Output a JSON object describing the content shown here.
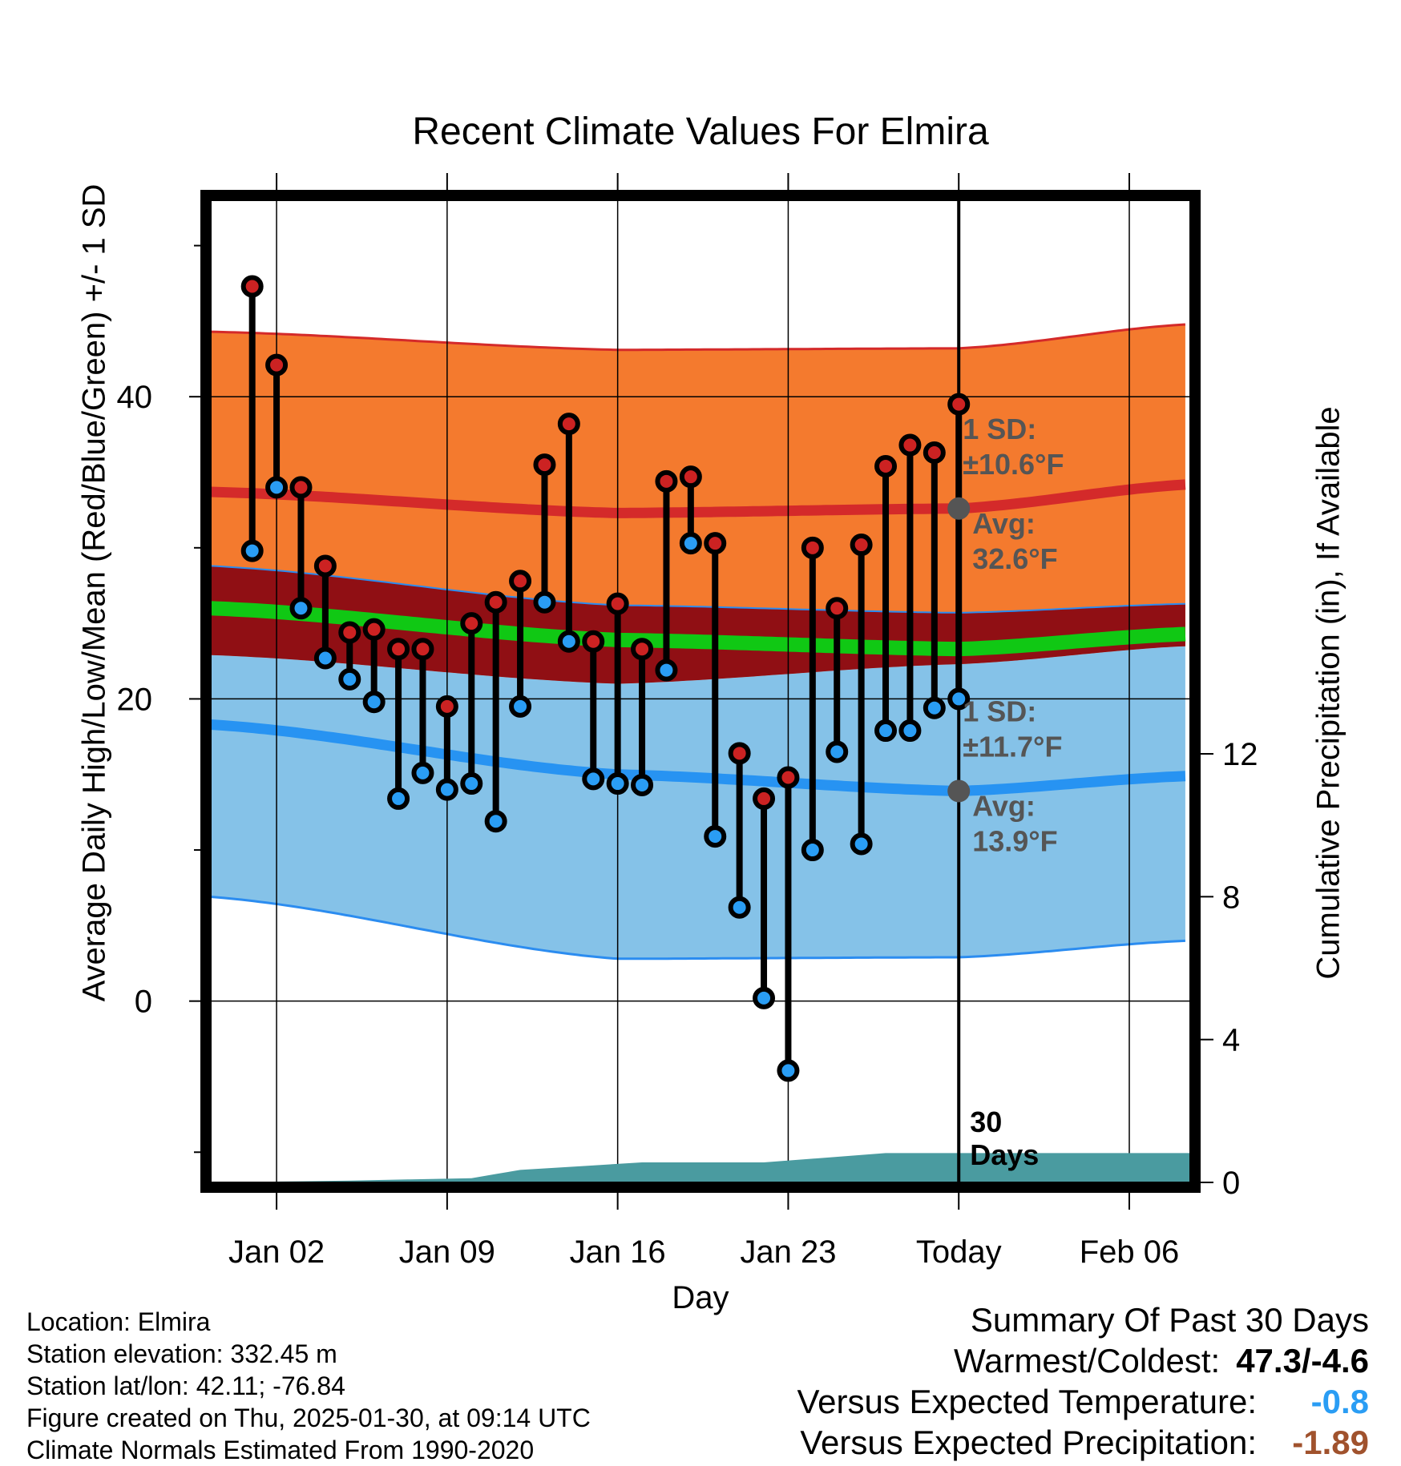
{
  "chart_data": {
    "type": "line",
    "title": "Recent Climate Values For Elmira",
    "xlabel": "Day",
    "ylabel": "Average Daily High/Low/Mean (Red/Blue/Green) +/- 1 SD",
    "y2label": "Cumulative Precipitation (in), If Available",
    "ylim": [
      -12,
      53
    ],
    "y_ticks": [
      0,
      20,
      40
    ],
    "y2lim": [
      0,
      27.5
    ],
    "y2_ticks": [
      0,
      4,
      8,
      12
    ],
    "x_tick_labels": [
      "Jan 02",
      "Jan 09",
      "Jan 16",
      "Jan 23",
      "Today",
      "Feb 06"
    ],
    "x_tick_days": [
      2,
      9,
      16,
      23,
      30,
      37
    ],
    "xlim": [
      -0.7,
      39.5
    ],
    "days": [
      1,
      2,
      3,
      4,
      5,
      6,
      7,
      8,
      9,
      10,
      11,
      12,
      13,
      14,
      15,
      16,
      17,
      18,
      19,
      20,
      21,
      22,
      23,
      24,
      25,
      26,
      27,
      28,
      29,
      30
    ],
    "series": [
      {
        "name": "Daily High",
        "color": "#cc2222",
        "values": [
          47.3,
          42.1,
          34.0,
          28.8,
          24.4,
          24.6,
          23.3,
          23.3,
          19.5,
          25.0,
          26.4,
          27.8,
          35.5,
          38.2,
          23.8,
          26.3,
          23.3,
          34.4,
          34.7,
          30.3,
          16.4,
          13.4,
          14.8,
          30.0,
          26.0,
          30.2,
          35.4,
          36.8,
          36.3,
          39.5
        ]
      },
      {
        "name": "Daily Low",
        "color": "#2a9df4",
        "values": [
          29.8,
          34.0,
          26.0,
          22.7,
          21.3,
          19.8,
          13.4,
          15.1,
          14.0,
          14.4,
          11.9,
          19.5,
          26.4,
          23.8,
          14.7,
          14.4,
          14.3,
          21.9,
          30.3,
          10.9,
          6.2,
          0.2,
          -4.6,
          10.0,
          16.5,
          10.4,
          17.9,
          17.9,
          19.4,
          20.0
        ]
      }
    ],
    "normals": {
      "high_avg": [
        33.7,
        32.3,
        32.6,
        34.2
      ],
      "high_upper": [
        44.3,
        43.1,
        43.2,
        44.8
      ],
      "high_lower": [
        28.8,
        26.2,
        25.7,
        26.3
      ],
      "mean_avg": [
        26.0,
        23.9,
        23.3,
        24.3
      ],
      "low_avg": [
        18.3,
        15.0,
        13.9,
        14.9
      ],
      "low_upper": [
        22.9,
        21.0,
        22.3,
        23.5
      ],
      "low_lower": [
        6.9,
        2.8,
        2.9,
        4.0
      ],
      "normal_days": [
        -0.7,
        16,
        30,
        39.5
      ]
    },
    "precip_cumulative": [
      0.0,
      0.05,
      0.12,
      0.35,
      0.56,
      0.56,
      0.82,
      0.82,
      0.82
    ],
    "precip_days": [
      -0.7,
      5,
      10,
      12,
      17,
      22,
      27,
      28,
      39.5
    ],
    "today_day": 30,
    "annotations": {
      "high_sd_label": "1 SD:",
      "high_sd_value": "±10.6°F",
      "high_avg_label": "Avg:",
      "high_avg_value": "32.6°F",
      "low_sd_label": "1 SD:",
      "low_sd_value": "±11.7°F",
      "low_avg_label": "Avg:",
      "low_avg_value": "13.9°F",
      "days_count": "30",
      "days_word": "Days"
    },
    "colors": {
      "high_band": "#f47a2e",
      "high_line": "#d42a2a",
      "overlap": "#900f14",
      "mean_line": "#10c814",
      "low_band": "#85c2e8",
      "low_line": "#2793f2",
      "low_edge": "#2b8cf0",
      "precip": "#4a9ba0",
      "annotation": "#555555",
      "marker_high": "#cc2222",
      "marker_low": "#2a9df4"
    }
  },
  "footer": {
    "location": "Location: Elmira",
    "elevation": "Station elevation: 332.45 m",
    "latlon": "Station lat/lon: 42.11; -76.84",
    "created": "Figure created on Thu, 2025-01-30, at 09:14 UTC",
    "normals": "Climate Normals Estimated From 1990-2020"
  },
  "summary": {
    "title": "Summary Of Past 30 Days",
    "warm_cold_label": "Warmest/Coldest:",
    "warm_cold_value": "47.3/-4.6",
    "temp_label": "Versus Expected Temperature:",
    "temp_value": "-0.8",
    "temp_color": "#2a9df4",
    "precip_label": "Versus Expected Precipitation:",
    "precip_value": "-1.89",
    "precip_color": "#a0522d"
  }
}
